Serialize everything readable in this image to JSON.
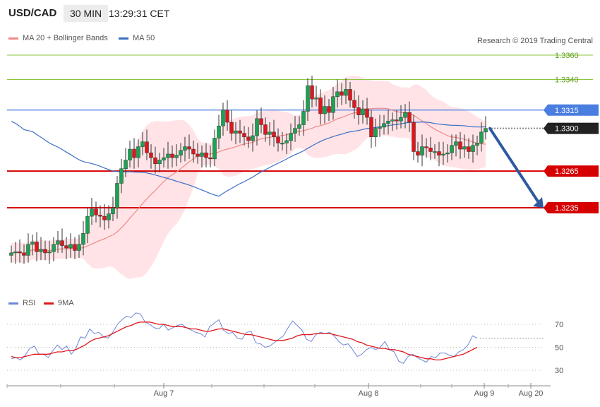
{
  "header": {
    "symbol": "USD/CAD",
    "timeframe": "30 MIN",
    "time": "13:29:31 CET"
  },
  "legend": {
    "ma20": "MA 20 + Bollinger Bands",
    "ma50": "MA 50"
  },
  "credit": "Research © 2019 Trading Central",
  "rsi_legend": {
    "rsi": "RSI",
    "ma9": "9MA"
  },
  "colors": {
    "bull": "#1aa352",
    "bear": "#e0161b",
    "band": "#ffd9dd",
    "ma20": "#f08a8a",
    "ma50": "#3a6fc4",
    "arrow": "#2e5aa0",
    "green_level": "#8ec63f",
    "red_level": "#d60000",
    "blue_level": "#4a7de0"
  },
  "chart_data": [
    {
      "type": "candlestick",
      "title": "USD/CAD 30 MIN",
      "ylim": [
        1.3195,
        1.337
      ],
      "x_ticks": [
        "Aug 7",
        "Aug 8",
        "Aug 9",
        "Aug 20"
      ],
      "y_ticks": [
        "1.3360",
        "1.3340",
        "1.3315",
        "1.3300",
        "1.3265",
        "1.3235"
      ],
      "levels": [
        {
          "value": 1.336,
          "label": "1.3360",
          "style": "green"
        },
        {
          "value": 1.334,
          "label": "1.3340",
          "style": "green"
        },
        {
          "value": 1.3315,
          "label": "1.3315",
          "style": "blue"
        },
        {
          "value": 1.33,
          "label": "1.3300",
          "style": "current"
        },
        {
          "value": 1.3265,
          "label": "1.3265",
          "style": "red"
        },
        {
          "value": 1.3235,
          "label": "1.3235",
          "style": "red"
        }
      ],
      "closes": [
        1.3198,
        1.3199,
        1.3198,
        1.3196,
        1.3205,
        1.3207,
        1.3199,
        1.3201,
        1.3198,
        1.3199,
        1.3205,
        1.3208,
        1.3204,
        1.3202,
        1.3205,
        1.32,
        1.3205,
        1.3214,
        1.3228,
        1.3234,
        1.3229,
        1.3228,
        1.3225,
        1.323,
        1.3235,
        1.3255,
        1.3267,
        1.3274,
        1.3283,
        1.3276,
        1.3285,
        1.3289,
        1.328,
        1.3276,
        1.3271,
        1.3274,
        1.3276,
        1.3279,
        1.3276,
        1.3278,
        1.3282,
        1.3285,
        1.3283,
        1.3279,
        1.3277,
        1.328,
        1.3276,
        1.3275,
        1.3292,
        1.3302,
        1.3315,
        1.3305,
        1.3296,
        1.3298,
        1.3296,
        1.3293,
        1.329,
        1.3294,
        1.3308,
        1.3303,
        1.3295,
        1.3297,
        1.3293,
        1.3288,
        1.3288,
        1.329,
        1.3296,
        1.33,
        1.3303,
        1.3314,
        1.3335,
        1.3324,
        1.3325,
        1.3312,
        1.3318,
        1.3313,
        1.3326,
        1.333,
        1.3327,
        1.3332,
        1.3323,
        1.3317,
        1.3311,
        1.3316,
        1.3309,
        1.3293,
        1.33,
        1.3301,
        1.3304,
        1.3306,
        1.3307,
        1.3306,
        1.3309,
        1.3313,
        1.3305,
        1.3281,
        1.3278,
        1.3285,
        1.3284,
        1.3281,
        1.3281,
        1.3278,
        1.3279,
        1.328,
        1.3286,
        1.3289,
        1.3283,
        1.3285,
        1.3281,
        1.3286,
        1.3288,
        1.3297,
        1.33
      ]
    },
    {
      "type": "line",
      "title": "RSI",
      "ylim": [
        20,
        80
      ],
      "y_ticks": [
        "70",
        "50",
        "30"
      ],
      "series": [
        {
          "name": "RSI",
          "values": [
            40,
            41,
            39,
            43,
            49,
            51,
            44,
            44,
            41,
            47,
            52,
            48,
            51,
            44,
            49,
            59,
            58,
            66,
            62,
            63,
            59,
            58,
            63,
            70,
            74,
            77,
            76,
            80,
            79,
            72,
            70,
            67,
            66,
            70,
            65,
            67,
            69,
            70,
            67,
            65,
            63,
            62,
            59,
            68,
            71,
            74,
            65,
            62,
            63,
            58,
            57,
            63,
            64,
            54,
            53,
            50,
            51,
            54,
            57,
            60,
            67,
            73,
            69,
            65,
            57,
            55,
            61,
            63,
            62,
            63,
            60,
            55,
            52,
            53,
            48,
            42,
            44,
            48,
            50,
            48,
            50,
            55,
            48,
            46,
            38,
            36,
            42,
            44,
            41,
            39,
            37,
            42,
            41,
            45,
            45,
            43,
            42,
            46,
            48,
            52,
            60,
            58
          ]
        },
        {
          "name": "9MA",
          "values": [
            42,
            41,
            41,
            42,
            43,
            44,
            44,
            44,
            44,
            45,
            46,
            46,
            47,
            47,
            48,
            50,
            52,
            55,
            57,
            58,
            59,
            60,
            62,
            64,
            66,
            68,
            69,
            71,
            72,
            72,
            72,
            71,
            70,
            70,
            69,
            68,
            68,
            68,
            67,
            66,
            66,
            65,
            64,
            64,
            65,
            66,
            66,
            65,
            64,
            63,
            62,
            61,
            61,
            60,
            59,
            58,
            57,
            56,
            56,
            56,
            57,
            58,
            60,
            61,
            61,
            61,
            62,
            62,
            62,
            62,
            61,
            60,
            59,
            58,
            57,
            55,
            54,
            52,
            51,
            50,
            49,
            49,
            48,
            48,
            47,
            46,
            44,
            43,
            42,
            41,
            40,
            40,
            39,
            39,
            40,
            41,
            42,
            43,
            44,
            46,
            48,
            50
          ]
        }
      ]
    }
  ]
}
